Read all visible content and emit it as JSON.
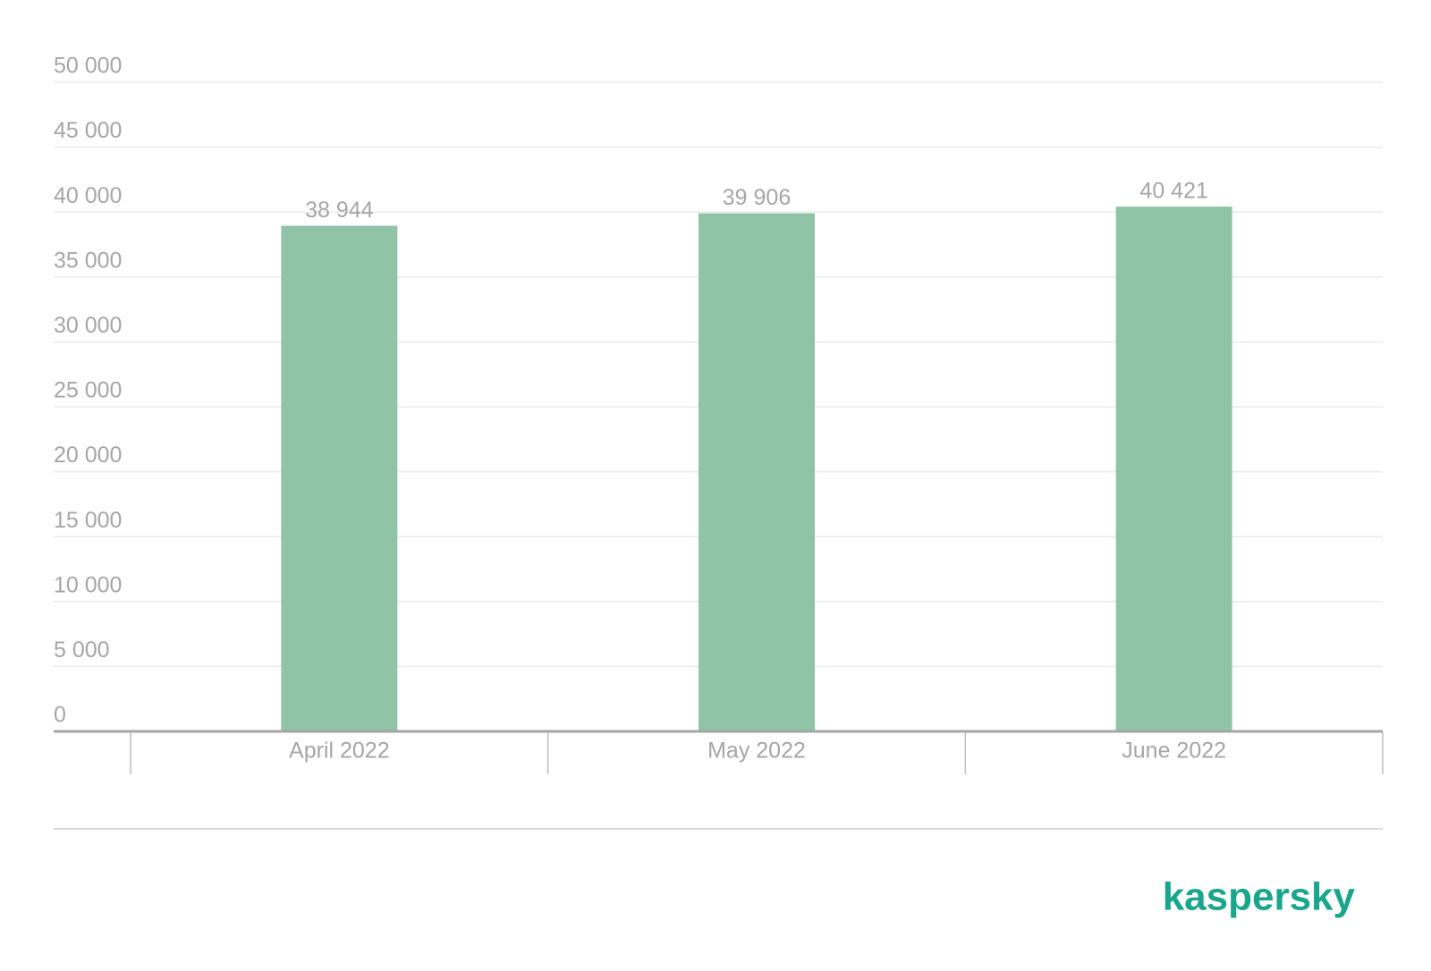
{
  "chart_data": {
    "type": "bar",
    "categories": [
      "April 2022",
      "May 2022",
      "June 2022"
    ],
    "values": [
      38944,
      39906,
      40421
    ],
    "value_labels": [
      "38 944",
      "39 906",
      "40 421"
    ],
    "color": "#8fc4a7",
    "ylim": [
      0,
      50000
    ],
    "yticks": [
      {
        "value": 0,
        "label": "0"
      },
      {
        "value": 5000,
        "label": "5 000"
      },
      {
        "value": 10000,
        "label": "10 000"
      },
      {
        "value": 15000,
        "label": "15 000"
      },
      {
        "value": 20000,
        "label": "20 000"
      },
      {
        "value": 25000,
        "label": "25 000"
      },
      {
        "value": 30000,
        "label": "30 000"
      },
      {
        "value": 35000,
        "label": "35 000"
      },
      {
        "value": 40000,
        "label": "40 000"
      },
      {
        "value": 45000,
        "label": "45 000"
      },
      {
        "value": 50000,
        "label": "50 000"
      }
    ],
    "grid": true
  },
  "logo": "kaspersky"
}
